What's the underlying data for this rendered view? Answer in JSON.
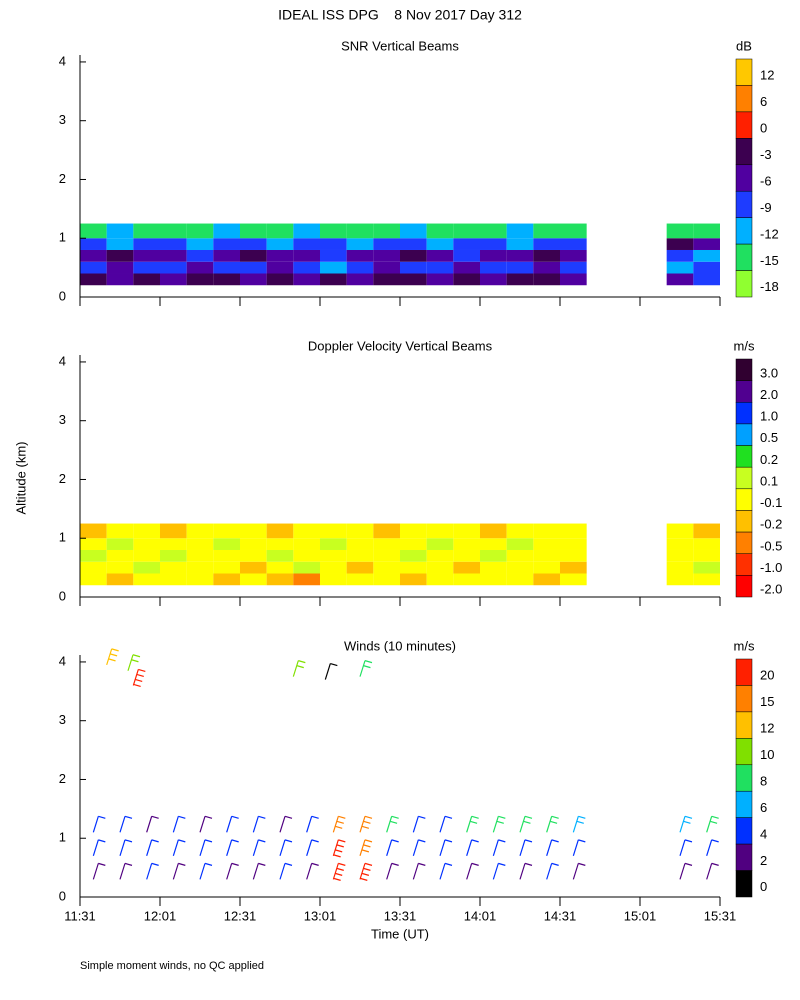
{
  "title": "IDEAL ISS DPG    8 Nov 2017 Day 312",
  "footnote": "Simple moment winds, no QC applied",
  "chart_data": [
    {
      "type": "heatmap",
      "title": "SNR Vertical Beams",
      "ylim": [
        0,
        4.05
      ],
      "yticks": [
        0,
        1,
        2,
        3,
        4
      ],
      "xlim": [
        0,
        240
      ],
      "x": [
        0,
        10,
        20,
        30,
        40,
        50,
        60,
        70,
        80,
        90,
        100,
        110,
        120,
        130,
        140,
        150,
        160,
        170,
        180,
        190,
        200,
        210,
        220,
        230,
        240
      ],
      "y": [
        0.2,
        0.4,
        0.6,
        0.8,
        1.0,
        1.25
      ],
      "values": [
        [
          -3,
          -6,
          -3,
          -6,
          -3,
          -3,
          -6,
          -3,
          -6,
          -3,
          -6,
          -3,
          -3,
          -6,
          -3,
          -6,
          -3,
          -3,
          -6,
          null,
          null,
          null,
          -6,
          -9
        ],
        [
          -9,
          -6,
          -9,
          -9,
          -6,
          -9,
          -9,
          -6,
          -9,
          -12,
          -9,
          -6,
          -9,
          -9,
          -6,
          -9,
          -9,
          -6,
          -9,
          null,
          null,
          null,
          -12,
          -9
        ],
        [
          -6,
          -3,
          -6,
          -6,
          -9,
          -6,
          -3,
          -6,
          -6,
          -9,
          -6,
          -6,
          -3,
          -6,
          -9,
          -6,
          -6,
          -3,
          -6,
          null,
          null,
          null,
          -9,
          -12
        ],
        [
          -9,
          -12,
          -9,
          -9,
          -12,
          -9,
          -9,
          -12,
          -9,
          -9,
          -12,
          -9,
          -9,
          -12,
          -9,
          -9,
          -12,
          -9,
          -9,
          null,
          null,
          null,
          -3,
          -6
        ],
        [
          -15,
          -12,
          -15,
          -15,
          -15,
          -12,
          -15,
          -15,
          -12,
          -15,
          -15,
          -15,
          -12,
          -15,
          -15,
          -15,
          -12,
          -15,
          -15,
          null,
          null,
          null,
          -15,
          -15
        ]
      ],
      "colorbar": {
        "label": "dB",
        "levels": [
          {
            "value": 12,
            "color": "#ffc800"
          },
          {
            "value": 6,
            "color": "#ff8000"
          },
          {
            "value": 0,
            "color": "#ff2000"
          },
          {
            "value": -3,
            "color": "#3c0050"
          },
          {
            "value": -6,
            "color": "#5000a0"
          },
          {
            "value": -9,
            "color": "#1e3cff"
          },
          {
            "value": -12,
            "color": "#00b0ff"
          },
          {
            "value": -15,
            "color": "#20e060"
          },
          {
            "value": -18,
            "color": "#90ff30"
          }
        ]
      }
    },
    {
      "type": "heatmap",
      "title": "Doppler Velocity Vertical Beams",
      "ylabel": "Altitude (km)",
      "ylim": [
        0,
        4.05
      ],
      "yticks": [
        0,
        1,
        2,
        3,
        4
      ],
      "xlim": [
        0,
        240
      ],
      "x": [
        0,
        10,
        20,
        30,
        40,
        50,
        60,
        70,
        80,
        90,
        100,
        110,
        120,
        130,
        140,
        150,
        160,
        170,
        180,
        190,
        200,
        210,
        220,
        230,
        240
      ],
      "y": [
        0.2,
        0.4,
        0.6,
        0.8,
        1.0,
        1.25
      ],
      "values": [
        [
          -0.1,
          -0.2,
          -0.1,
          -0.1,
          -0.1,
          -0.2,
          -0.1,
          -0.2,
          -0.5,
          -0.1,
          -0.1,
          -0.1,
          -0.2,
          -0.1,
          -0.1,
          -0.1,
          -0.1,
          -0.2,
          -0.1,
          null,
          null,
          null,
          -0.1,
          -0.1
        ],
        [
          -0.1,
          -0.1,
          0.1,
          -0.1,
          -0.1,
          -0.1,
          -0.2,
          -0.1,
          0.1,
          -0.1,
          -0.2,
          -0.1,
          -0.1,
          -0.1,
          -0.2,
          -0.1,
          -0.1,
          -0.1,
          -0.2,
          null,
          null,
          null,
          -0.1,
          0.1
        ],
        [
          0.1,
          -0.1,
          -0.1,
          0.1,
          -0.1,
          -0.1,
          -0.1,
          0.1,
          -0.1,
          -0.1,
          -0.1,
          -0.1,
          0.1,
          -0.1,
          -0.1,
          0.1,
          -0.1,
          -0.1,
          -0.1,
          null,
          null,
          null,
          -0.1,
          -0.1
        ],
        [
          -0.1,
          0.1,
          -0.1,
          -0.1,
          -0.1,
          0.1,
          -0.1,
          -0.1,
          -0.1,
          0.1,
          -0.1,
          -0.1,
          -0.1,
          0.1,
          -0.1,
          -0.1,
          0.1,
          -0.1,
          -0.1,
          null,
          null,
          null,
          -0.1,
          -0.1
        ],
        [
          -0.2,
          -0.1,
          -0.1,
          -0.2,
          -0.1,
          -0.1,
          -0.1,
          -0.2,
          -0.1,
          -0.1,
          -0.1,
          -0.2,
          -0.1,
          -0.1,
          -0.1,
          -0.2,
          -0.1,
          -0.1,
          -0.1,
          null,
          null,
          null,
          -0.1,
          -0.2
        ]
      ],
      "colorbar": {
        "label": "m/s",
        "levels": [
          {
            "value": 3,
            "label": "3.0",
            "color": "#300030"
          },
          {
            "value": 2,
            "label": "2.0",
            "color": "#500090"
          },
          {
            "value": 1,
            "label": "1.0",
            "color": "#0030ff"
          },
          {
            "value": 0.5,
            "color": "#00a0ff"
          },
          {
            "value": 0.2,
            "color": "#20e020"
          },
          {
            "value": 0.1,
            "color": "#c8ff20"
          },
          {
            "value": -0.1,
            "color": "#ffff00"
          },
          {
            "value": -0.2,
            "color": "#ffc000"
          },
          {
            "value": -0.5,
            "color": "#ff8000"
          },
          {
            "value": -1,
            "label": "-1.0",
            "color": "#ff3000"
          },
          {
            "value": -2,
            "label": "-2.0",
            "color": "#ff0000"
          }
        ]
      }
    },
    {
      "type": "barbs",
      "title": "Winds (10 minutes)",
      "xlabel": "Time (UT)",
      "ylim": [
        0,
        4.05
      ],
      "yticks": [
        0,
        1,
        2,
        3,
        4
      ],
      "xlim": [
        0,
        240
      ],
      "xticks": [
        {
          "value": 0,
          "label": "11:31"
        },
        {
          "value": 30,
          "label": "12:01"
        },
        {
          "value": 60,
          "label": "12:31"
        },
        {
          "value": 90,
          "label": "13:01"
        },
        {
          "value": 120,
          "label": "13:31"
        },
        {
          "value": 150,
          "label": "14:01"
        },
        {
          "value": 180,
          "label": "14:31"
        },
        {
          "value": 210,
          "label": "15:01"
        },
        {
          "value": 240,
          "label": "15:31"
        }
      ],
      "x": [
        5,
        5,
        5,
        15,
        15,
        15,
        25,
        25,
        25,
        35,
        35,
        35,
        45,
        45,
        45,
        55,
        55,
        55,
        65,
        65,
        65,
        75,
        75,
        75,
        85,
        85,
        85,
        95,
        95,
        95,
        105,
        105,
        105,
        115,
        115,
        115,
        125,
        125,
        125,
        135,
        135,
        135,
        145,
        145,
        145,
        155,
        155,
        155,
        165,
        165,
        165,
        175,
        175,
        175,
        185,
        185,
        185,
        225,
        225,
        225,
        235,
        235,
        235,
        10,
        18,
        20,
        80,
        92,
        105
      ],
      "y": [
        0.3,
        0.7,
        1.1,
        0.3,
        0.7,
        1.1,
        0.3,
        0.7,
        1.1,
        0.3,
        0.7,
        1.1,
        0.3,
        0.7,
        1.1,
        0.3,
        0.7,
        1.1,
        0.3,
        0.7,
        1.1,
        0.3,
        0.7,
        1.1,
        0.3,
        0.7,
        1.1,
        0.3,
        0.7,
        1.1,
        0.3,
        0.7,
        1.1,
        0.3,
        0.7,
        1.1,
        0.3,
        0.7,
        1.1,
        0.3,
        0.7,
        1.1,
        0.3,
        0.7,
        1.1,
        0.3,
        0.7,
        1.1,
        0.3,
        0.7,
        1.1,
        0.3,
        0.7,
        1.1,
        0.3,
        0.7,
        1.1,
        0.3,
        0.7,
        1.1,
        0.3,
        0.7,
        1.1,
        3.95,
        3.85,
        3.6,
        3.75,
        3.7,
        3.75
      ],
      "speed": [
        2,
        4,
        4,
        2,
        4,
        4,
        4,
        4,
        2,
        2,
        4,
        4,
        4,
        4,
        2,
        2,
        4,
        4,
        2,
        4,
        4,
        4,
        4,
        2,
        2,
        4,
        4,
        20,
        20,
        15,
        20,
        15,
        15,
        2,
        4,
        8,
        2,
        4,
        4,
        4,
        4,
        4,
        2,
        4,
        8,
        4,
        4,
        8,
        2,
        4,
        8,
        4,
        4,
        8,
        2,
        4,
        6,
        2,
        4,
        6,
        2,
        4,
        8,
        12,
        10,
        20,
        10,
        0,
        8
      ],
      "colorbar": {
        "label": "m/s",
        "levels": [
          {
            "value": 20,
            "color": "#ff2000"
          },
          {
            "value": 15,
            "color": "#ff8000"
          },
          {
            "value": 12,
            "color": "#ffc000"
          },
          {
            "value": 10,
            "color": "#80e000"
          },
          {
            "value": 8,
            "color": "#20e060"
          },
          {
            "value": 6,
            "color": "#00b0ff"
          },
          {
            "value": 4,
            "color": "#0030ff"
          },
          {
            "value": 2,
            "color": "#500080"
          },
          {
            "value": 0,
            "color": "#000000"
          }
        ]
      }
    }
  ]
}
